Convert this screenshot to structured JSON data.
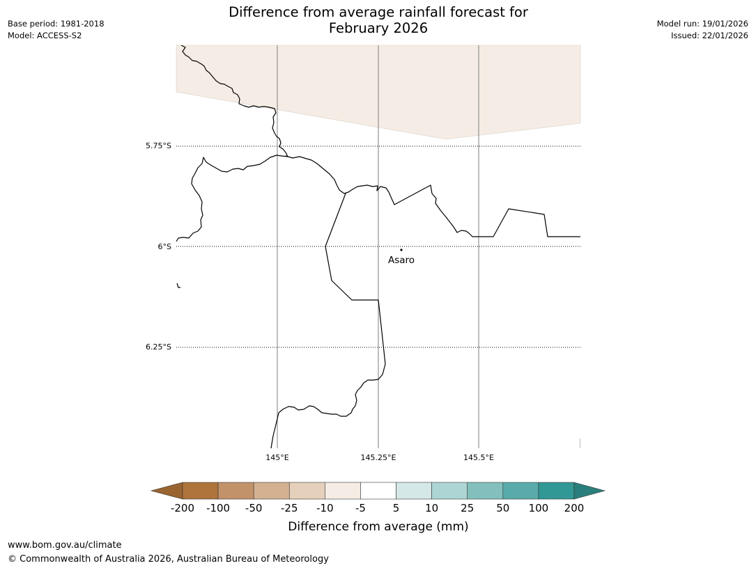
{
  "title": {
    "line1": "Difference from average rainfall forecast for",
    "line2": "February 2026"
  },
  "meta_left": {
    "base_period": "Base period: 1981-2018",
    "model": "Model: ACCESS-S2"
  },
  "meta_right": {
    "model_run": "Model run: 19/01/2026",
    "issued": "Issued: 22/01/2026"
  },
  "map": {
    "lat_labels": [
      "5.75°S",
      "6°S",
      "6.25°S"
    ],
    "lon_labels": [
      "145°E",
      "145.25°E",
      "145.5°E"
    ],
    "place": "Asaro"
  },
  "legend": {
    "title": "Difference from average (mm)",
    "tick_labels": [
      "-200",
      "-100",
      "-50",
      "-25",
      "-10",
      "-5",
      "5",
      "10",
      "25",
      "50",
      "100",
      "200"
    ],
    "colors": [
      "#9a6430",
      "#ae743c",
      "#c2926a",
      "#d4b191",
      "#e5d0bc",
      "#f5ede5",
      "#ffffff",
      "#d5e8e8",
      "#acd5d4",
      "#83c0bd",
      "#58aba8",
      "#329895",
      "#2a7f7c"
    ]
  },
  "footer": {
    "url": "www.bom.gov.au/climate",
    "copyright": "© Commonwealth of Australia 2026, Australian Bureau of Meteorology"
  }
}
